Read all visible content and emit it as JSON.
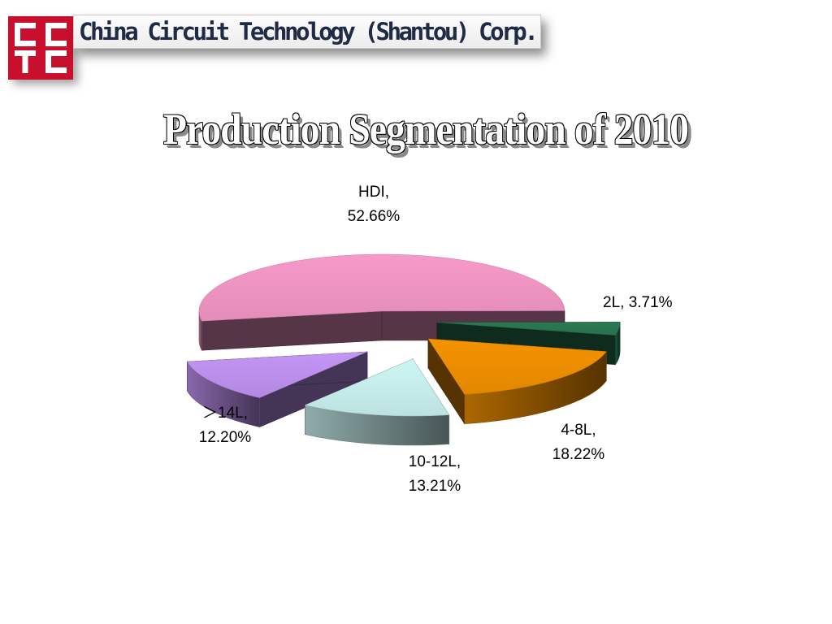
{
  "header": {
    "logo_text": "CCTC",
    "company_name": "China Circuit Technology (Shantou) Corp."
  },
  "chart_data": {
    "type": "pie",
    "title": "Production Segmentation of 2010",
    "slices": [
      {
        "label": "HDI",
        "value": 52.66,
        "display": "52.66%",
        "color": "#f799c9"
      },
      {
        "label": "2L",
        "value": 3.71,
        "display": "3.71%",
        "color": "#2a7a52"
      },
      {
        "label": "4-8L",
        "value": 18.22,
        "display": "18.22%",
        "color": "#f59300"
      },
      {
        "label": "10-12L",
        "value": 13.21,
        "display": "13.21%",
        "color": "#ccf6f4"
      },
      {
        "label": "＞14L",
        "value": 12.2,
        "display": "12.20%",
        "color": "#c395f5"
      }
    ],
    "style": "3d-exploded"
  }
}
